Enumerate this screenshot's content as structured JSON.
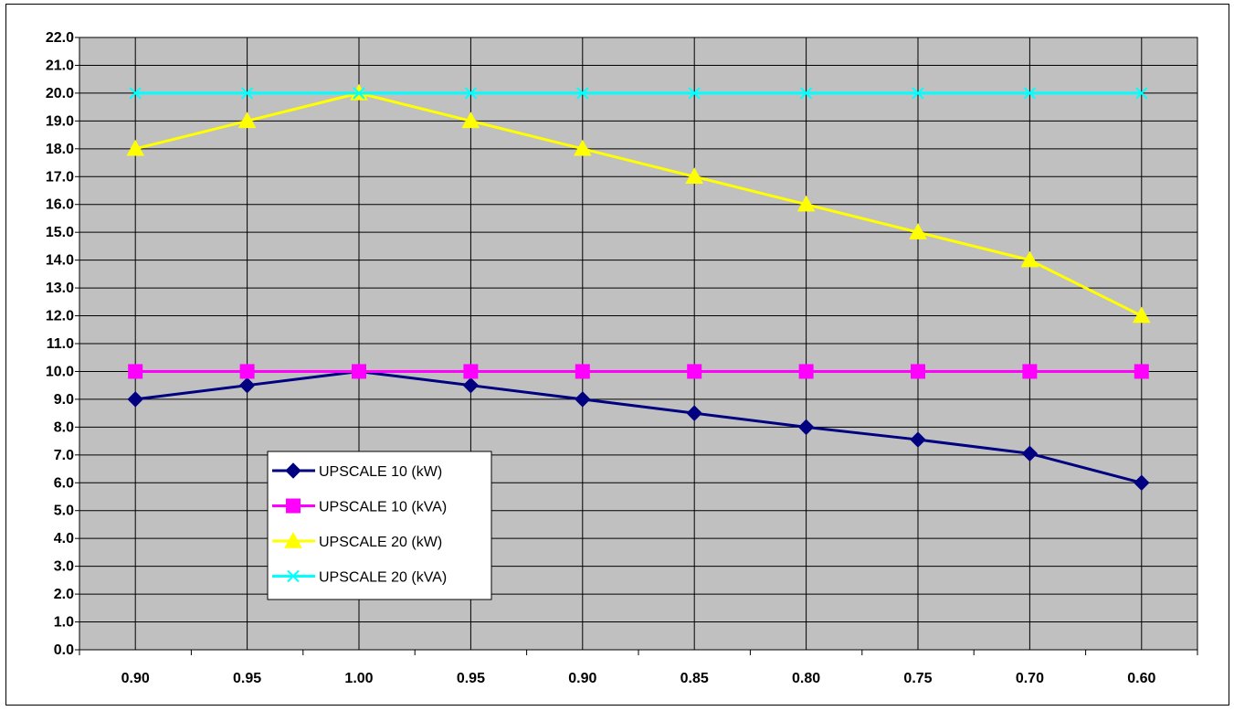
{
  "chart_data": {
    "type": "line",
    "title": "",
    "xlabel": "",
    "ylabel": "",
    "categories": [
      "0.90",
      "0.95",
      "1.00",
      "0.95",
      "0.90",
      "0.85",
      "0.80",
      "0.75",
      "0.70",
      "0.60"
    ],
    "ylim": [
      0,
      22
    ],
    "ytick_step": 1,
    "ytick_labels": [
      "0.0",
      "1.0",
      "2.0",
      "3.0",
      "4.0",
      "5.0",
      "6.0",
      "7.0",
      "8.0",
      "9.0",
      "10.0",
      "11.0",
      "12.0",
      "13.0",
      "14.0",
      "15.0",
      "16.0",
      "17.0",
      "18.0",
      "19.0",
      "20.0",
      "21.0",
      "22.0"
    ],
    "grid": true,
    "plot_background": "#c0c0c0",
    "legend_position": "left-bottom inside plot",
    "series": [
      {
        "name": "UPSCALE 10 (kW)",
        "color": "#000080",
        "marker": "diamond",
        "values": [
          9.0,
          9.5,
          10.0,
          9.5,
          9.0,
          8.5,
          8.0,
          7.55,
          7.05,
          6.0
        ]
      },
      {
        "name": "UPSCALE 10 (kVA)",
        "color": "#ff00ff",
        "marker": "square",
        "values": [
          10.0,
          10.0,
          10.0,
          10.0,
          10.0,
          10.0,
          10.0,
          10.0,
          10.0,
          10.0
        ]
      },
      {
        "name": "UPSCALE 20 (kW)",
        "color": "#ffff00",
        "marker": "triangle",
        "values": [
          18.0,
          19.0,
          20.0,
          19.0,
          18.0,
          17.0,
          16.0,
          15.0,
          14.0,
          12.0
        ]
      },
      {
        "name": "UPSCALE 20 (kVA)",
        "color": "#00ffff",
        "marker": "x",
        "values": [
          20.0,
          20.0,
          20.0,
          20.0,
          20.0,
          20.0,
          20.0,
          20.0,
          20.0,
          20.0
        ]
      }
    ]
  }
}
